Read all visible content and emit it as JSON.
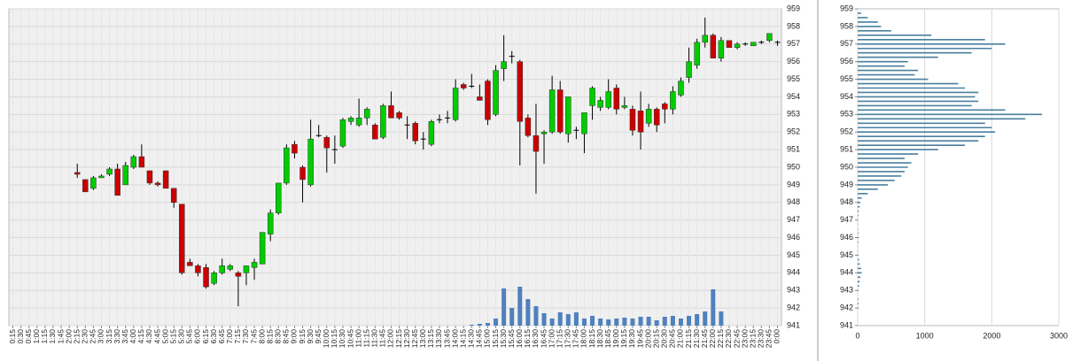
{
  "chart_data": [
    {
      "type": "candlestick",
      "categories": [
        "0:15",
        "0:30",
        "0:45",
        "1:00",
        "1:15",
        "1:30",
        "1:45",
        "2:00",
        "2:15",
        "2:30",
        "2:45",
        "3:00",
        "3:15",
        "3:30",
        "3:45",
        "4:00",
        "4:15",
        "4:30",
        "4:45",
        "5:00",
        "5:15",
        "5:30",
        "5:45",
        "6:00",
        "6:15",
        "6:30",
        "6:45",
        "7:00",
        "7:15",
        "7:30",
        "7:45",
        "8:00",
        "8:15",
        "8:30",
        "8:45",
        "9:00",
        "9:15",
        "9:30",
        "9:45",
        "10:00",
        "10:15",
        "10:30",
        "10:45",
        "11:00",
        "11:15",
        "11:30",
        "11:45",
        "12:00",
        "12:15",
        "12:30",
        "12:45",
        "13:00",
        "13:15",
        "13:30",
        "13:45",
        "14:00",
        "14:15",
        "14:30",
        "14:45",
        "15:00",
        "15:15",
        "15:30",
        "15:45",
        "16:00",
        "16:15",
        "16:30",
        "16:45",
        "17:00",
        "17:15",
        "17:30",
        "17:45",
        "18:00",
        "18:15",
        "18:30",
        "18:45",
        "19:00",
        "19:15",
        "19:30",
        "19:45",
        "20:00",
        "20:15",
        "20:30",
        "20:45",
        "21:00",
        "21:15",
        "21:30",
        "21:45",
        "22:00",
        "22:15",
        "22:30",
        "22:45",
        "23:00",
        "23:15",
        "23:30",
        "23:45",
        "0:00"
      ],
      "open": [
        null,
        null,
        null,
        null,
        null,
        null,
        null,
        null,
        949.7,
        949.3,
        948.8,
        949.4,
        949.6,
        949.9,
        949,
        950,
        950.6,
        949.8,
        949.1,
        949.8,
        948.8,
        947.9,
        944.6,
        944.4,
        944.3,
        943.4,
        944,
        944.2,
        944,
        944,
        944.3,
        944.5,
        946.2,
        947.4,
        949.1,
        951.3,
        950,
        949,
        951.8,
        951.7,
        951,
        951.2,
        952.6,
        952.4,
        952.8,
        952.4,
        951.7,
        953.5,
        953.1,
        952.4,
        952.5,
        951.6,
        951.3,
        952.7,
        952.8,
        952.7,
        954.7,
        954.6,
        954,
        954.9,
        953,
        955.6,
        956.3,
        956,
        952.8,
        951.8,
        951.9,
        952,
        954.4,
        951.9,
        952.1,
        951.9,
        953.5,
        953.4,
        953.4,
        954.5,
        953.4,
        953.3,
        953.2,
        952.5,
        953.3,
        953.6,
        953.3,
        954.1,
        955.1,
        955.8,
        957.1,
        957.5,
        956.2,
        957.2,
        956.8,
        957,
        956.9,
        957.1,
        957.2,
        957.1
      ],
      "high": [
        null,
        null,
        null,
        null,
        null,
        null,
        null,
        null,
        950.2,
        949.3,
        949.5,
        949.6,
        950,
        950.2,
        950.3,
        950.7,
        951.3,
        949.8,
        949.2,
        949.8,
        948.8,
        947.9,
        944.8,
        944.5,
        944.5,
        944.1,
        944.8,
        944.5,
        944.1,
        944.4,
        944.8,
        946.3,
        947.6,
        949.1,
        951.3,
        951.5,
        950.1,
        952.7,
        952.4,
        951.8,
        951.8,
        952.8,
        952.9,
        953.9,
        953.4,
        952.5,
        953.6,
        954.3,
        953.2,
        952.9,
        952.6,
        952,
        952.7,
        953,
        953.2,
        955,
        954.8,
        955.3,
        954.7,
        955,
        955.8,
        957.5,
        956.6,
        956.1,
        953,
        953.6,
        952.1,
        955.2,
        954.9,
        954,
        952.3,
        953.1,
        954.6,
        954,
        955,
        954.7,
        954,
        953.5,
        954.3,
        953.6,
        953.4,
        953.7,
        954.6,
        955.1,
        956.8,
        957.3,
        958.5,
        957.6,
        957.4,
        957.2,
        957.1,
        957.1,
        957.1,
        957.2,
        957.6,
        957.2
      ],
      "low": [
        null,
        null,
        null,
        null,
        null,
        null,
        null,
        null,
        949.4,
        948.6,
        948.7,
        949.4,
        949.5,
        948.4,
        949,
        949.9,
        950,
        949,
        948.9,
        948.8,
        947.7,
        943.9,
        944.4,
        943.8,
        943.1,
        943.3,
        943.9,
        944.1,
        942.1,
        943.3,
        943.6,
        944.5,
        945.8,
        947.3,
        949,
        950.5,
        948,
        948.9,
        951.7,
        949.7,
        950.2,
        951.1,
        952.4,
        952.3,
        952.4,
        951.6,
        951.6,
        952.8,
        952.7,
        951.6,
        951.3,
        951,
        951.2,
        952.5,
        952.5,
        952.6,
        954.4,
        954.5,
        953.8,
        952.4,
        952.9,
        954.9,
        955.9,
        950.1,
        951.7,
        948.5,
        950.2,
        951.9,
        951.9,
        951.4,
        951.6,
        950.8,
        952.7,
        953.2,
        953.3,
        953,
        953.3,
        951.8,
        951,
        952.3,
        952,
        952.5,
        953,
        954,
        954.8,
        955.6,
        956.8,
        956.2,
        956,
        956.8,
        956.7,
        956.9,
        956.9,
        957,
        957.1,
        956.9
      ],
      "close": [
        null,
        null,
        null,
        null,
        null,
        null,
        null,
        null,
        949.6,
        948.6,
        949.4,
        949.5,
        949.9,
        948.4,
        950.1,
        950.6,
        950,
        949.1,
        949,
        948.8,
        948,
        944,
        944.4,
        944,
        943.2,
        944,
        944.4,
        944.4,
        943.8,
        944.4,
        944.6,
        946.3,
        947.4,
        949.1,
        951.1,
        950.8,
        949.3,
        951.6,
        951.8,
        951.1,
        951,
        952.7,
        952.8,
        952.8,
        953.3,
        951.6,
        953.5,
        952.8,
        952.8,
        952.4,
        951.5,
        951.6,
        952.6,
        952.7,
        952.8,
        954.5,
        954.5,
        954.6,
        953.8,
        952.7,
        955.5,
        956,
        956.3,
        952.6,
        951.8,
        950.9,
        952,
        954.4,
        952,
        954,
        952.1,
        953.1,
        954.5,
        953.8,
        954.3,
        953.3,
        953.5,
        952.1,
        952,
        953.3,
        952.4,
        953.3,
        954.3,
        954.9,
        956,
        957.1,
        957.5,
        956.2,
        957.2,
        956.8,
        957,
        957,
        957.1,
        957.1,
        957.6,
        957.1
      ],
      "volume": [
        null,
        null,
        null,
        null,
        null,
        null,
        null,
        null,
        null,
        null,
        null,
        null,
        null,
        null,
        null,
        null,
        null,
        null,
        null,
        null,
        null,
        null,
        null,
        null,
        null,
        null,
        null,
        null,
        null,
        null,
        null,
        null,
        null,
        null,
        null,
        null,
        null,
        null,
        null,
        null,
        null,
        null,
        null,
        null,
        null,
        null,
        null,
        null,
        null,
        null,
        null,
        null,
        null,
        null,
        null,
        null,
        null,
        1,
        2,
        3,
        8,
        42,
        20,
        44,
        30,
        22,
        14,
        8,
        15,
        13,
        15,
        8,
        11,
        8,
        7,
        8,
        9,
        8,
        10,
        10,
        6,
        10,
        11,
        8,
        11,
        13,
        16,
        41,
        16,
        null,
        null,
        null,
        null,
        null,
        null,
        null
      ],
      "volume_lim": [
        0,
        150
      ],
      "ylim": [
        941,
        959
      ],
      "yticks": [
        941,
        942,
        943,
        944,
        945,
        946,
        947,
        948,
        949,
        950,
        951,
        952,
        953,
        954,
        955,
        956,
        957,
        958,
        959
      ],
      "up_color": "#00cc00",
      "down_color": "#cc0000",
      "volume_color": "#4f81bd",
      "grid": true
    },
    {
      "type": "profile",
      "prices": [
        941,
        941.25,
        941.5,
        941.75,
        942,
        942.25,
        942.5,
        942.75,
        943,
        943.25,
        943.5,
        943.75,
        944,
        944.25,
        944.5,
        944.75,
        945,
        945.25,
        945.5,
        945.75,
        946,
        946.25,
        946.5,
        946.75,
        947,
        947.25,
        947.5,
        947.75,
        948,
        948.25,
        948.5,
        948.75,
        949,
        949.25,
        949.5,
        949.75,
        950,
        950.25,
        950.5,
        950.75,
        951,
        951.25,
        951.5,
        951.75,
        952,
        952.25,
        952.5,
        952.75,
        953,
        953.25,
        953.5,
        953.75,
        954,
        954.25,
        954.5,
        954.75,
        955,
        955.25,
        955.5,
        955.75,
        956,
        956.25,
        956.5,
        956.75,
        957,
        957.25,
        957.5,
        957.75,
        958,
        958.25,
        958.5,
        958.75
      ],
      "values": [
        0,
        0,
        0,
        0,
        10,
        15,
        10,
        0,
        10,
        20,
        30,
        40,
        60,
        50,
        30,
        20,
        10,
        5,
        5,
        10,
        15,
        10,
        5,
        5,
        5,
        10,
        15,
        30,
        40,
        60,
        150,
        300,
        450,
        550,
        650,
        700,
        750,
        800,
        700,
        900,
        1200,
        1600,
        1800,
        1900,
        2050,
        2000,
        1900,
        2500,
        2750,
        2200,
        1700,
        1800,
        1750,
        1800,
        1600,
        1500,
        1050,
        850,
        900,
        700,
        750,
        1200,
        1700,
        2000,
        2200,
        1900,
        1100,
        500,
        350,
        300,
        150,
        50
      ],
      "xlim": [
        0,
        3000
      ],
      "xticks": [
        0,
        1000,
        2000,
        3000
      ],
      "ylim": [
        941,
        959
      ],
      "yticks": [
        941,
        942,
        943,
        944,
        945,
        946,
        947,
        948,
        949,
        950,
        951,
        952,
        953,
        954,
        955,
        956,
        957,
        958,
        959
      ],
      "color": "#4a7f9e",
      "grid": true
    }
  ]
}
